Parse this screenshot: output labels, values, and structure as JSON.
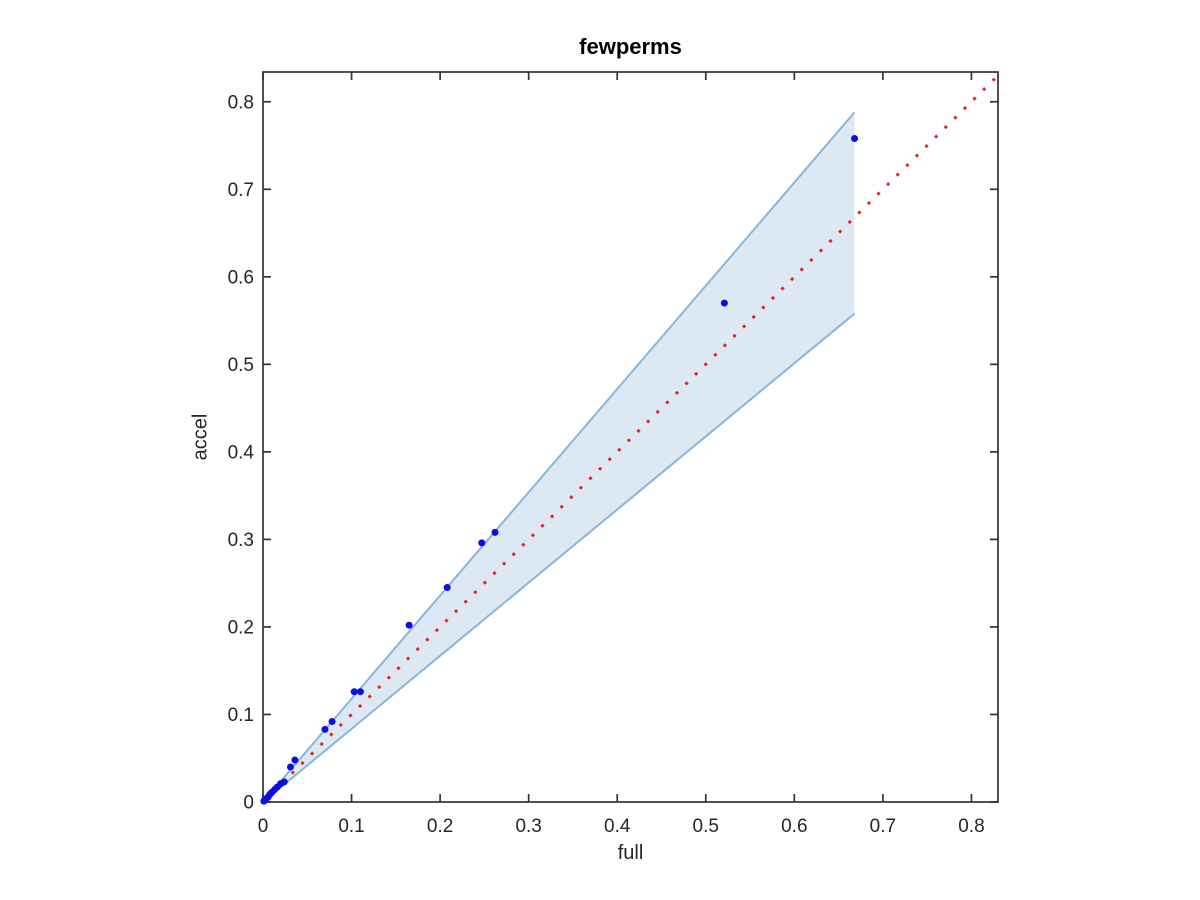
{
  "figure": {
    "title": "fewperms",
    "xlabel": "full",
    "ylabel": "accel"
  },
  "colors": {
    "background": "#ffffff",
    "point": "#0d0de0",
    "identity_line": "#e6231f",
    "band_fill": "#dce9f5",
    "band_edge": "#8ab5d8",
    "axis": "#333333",
    "tick_text": "#262626"
  },
  "chart_data": {
    "type": "scatter",
    "title": "fewperms",
    "xlabel": "full",
    "ylabel": "accel",
    "xlim": [
      0,
      0.83
    ],
    "ylim": [
      0,
      0.834
    ],
    "grid": false,
    "box": true,
    "legend": "none",
    "x_ticks": [
      0,
      0.1,
      0.2,
      0.3,
      0.4,
      0.5,
      0.6,
      0.7,
      0.8
    ],
    "x_tick_labels": [
      "0",
      "0.1",
      "0.2",
      "0.3",
      "0.4",
      "0.5",
      "0.6",
      "0.7",
      "0.8"
    ],
    "y_ticks": [
      0,
      0.1,
      0.2,
      0.3,
      0.4,
      0.5,
      0.6,
      0.7,
      0.8
    ],
    "y_tick_labels": [
      "0",
      "0.1",
      "0.2",
      "0.3",
      "0.4",
      "0.5",
      "0.6",
      "0.7",
      "0.8"
    ],
    "series": [
      {
        "name": "accel-vs-full-points",
        "type": "scatter",
        "marker": "dot",
        "points": [
          [
            0.668,
            0.758
          ],
          [
            0.521,
            0.57
          ],
          [
            0.262,
            0.308
          ],
          [
            0.247,
            0.296
          ],
          [
            0.208,
            0.245
          ],
          [
            0.165,
            0.202
          ],
          [
            0.11,
            0.126
          ],
          [
            0.103,
            0.126
          ],
          [
            0.078,
            0.092
          ],
          [
            0.07,
            0.083
          ],
          [
            0.036,
            0.048
          ],
          [
            0.031,
            0.04
          ],
          [
            0.024,
            0.023
          ],
          [
            0.02,
            0.021
          ],
          [
            0.016,
            0.017
          ],
          [
            0.013,
            0.014
          ],
          [
            0.01,
            0.011
          ],
          [
            0.008,
            0.009
          ],
          [
            0.006,
            0.006
          ],
          [
            0.004,
            0.004
          ],
          [
            0.002,
            0.002
          ],
          [
            0.001,
            0.001
          ]
        ]
      },
      {
        "name": "identity-line",
        "type": "line",
        "style": "dotted",
        "points": [
          [
            0,
            0
          ],
          [
            0.83,
            0.83
          ]
        ]
      },
      {
        "name": "confidence-band",
        "type": "area",
        "points": [
          [
            0,
            0
          ],
          [
            0.668,
            0.788
          ],
          [
            0.668,
            0.558
          ]
        ]
      }
    ]
  }
}
